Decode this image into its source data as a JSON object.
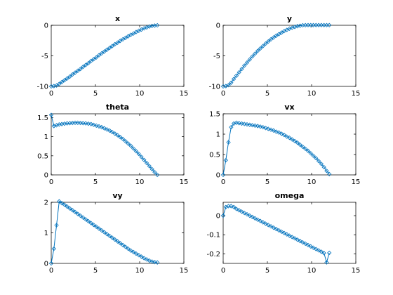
{
  "figure": {
    "background": "#ffffff",
    "series_color": "#0072bd",
    "marker": "diamond-open"
  },
  "chart_data": [
    {
      "type": "line",
      "title": "x",
      "xlim": [
        0,
        15
      ],
      "ylim": [
        -10,
        0
      ],
      "xticks": [
        0,
        5,
        10,
        15
      ],
      "yticks": [
        -10,
        -5,
        0
      ],
      "series": [
        {
          "x": [
            0,
            0.3,
            0.6,
            0.9,
            1.2,
            1.5,
            1.8,
            2.1,
            2.4,
            2.7,
            3.0,
            3.3,
            3.6,
            3.9,
            4.2,
            4.5,
            4.8,
            5.1,
            5.4,
            5.7,
            6.0,
            6.3,
            6.6,
            6.9,
            7.2,
            7.5,
            7.8,
            8.1,
            8.4,
            8.7,
            9.0,
            9.3,
            9.6,
            9.9,
            10.2,
            10.5,
            10.8,
            11.1,
            11.4,
            11.7,
            12.0
          ],
          "y": [
            -10.0,
            -9.95,
            -9.85,
            -9.6,
            -9.3,
            -9.0,
            -8.7,
            -8.4,
            -8.05,
            -7.75,
            -7.45,
            -7.15,
            -6.8,
            -6.5,
            -6.2,
            -5.85,
            -5.55,
            -5.25,
            -4.9,
            -4.6,
            -4.3,
            -4.0,
            -3.7,
            -3.4,
            -3.1,
            -2.85,
            -2.55,
            -2.3,
            -2.05,
            -1.8,
            -1.55,
            -1.35,
            -1.1,
            -0.9,
            -0.7,
            -0.5,
            -0.35,
            -0.2,
            -0.1,
            -0.05,
            0.0
          ]
        }
      ]
    },
    {
      "type": "line",
      "title": "y",
      "xlim": [
        0,
        15
      ],
      "ylim": [
        -10,
        0
      ],
      "xticks": [
        0,
        5,
        10,
        15
      ],
      "yticks": [
        -10,
        -5,
        0
      ],
      "series": [
        {
          "x": [
            0,
            0.3,
            0.6,
            0.9,
            1.2,
            1.5,
            1.8,
            2.1,
            2.4,
            2.7,
            3.0,
            3.3,
            3.6,
            3.9,
            4.2,
            4.5,
            4.8,
            5.1,
            5.4,
            5.7,
            6.0,
            6.3,
            6.6,
            6.9,
            7.2,
            7.5,
            7.8,
            8.1,
            8.4,
            8.7,
            9.0,
            9.3,
            9.6,
            9.9,
            10.2,
            10.5,
            10.8,
            11.1,
            11.4,
            11.7,
            12.0
          ],
          "y": [
            -10.0,
            -9.95,
            -9.8,
            -9.4,
            -8.8,
            -8.25,
            -7.7,
            -7.15,
            -6.6,
            -6.1,
            -5.6,
            -5.1,
            -4.65,
            -4.2,
            -3.8,
            -3.4,
            -3.0,
            -2.65,
            -2.3,
            -2.0,
            -1.7,
            -1.45,
            -1.2,
            -0.95,
            -0.75,
            -0.55,
            -0.4,
            -0.27,
            -0.15,
            -0.07,
            0.0,
            0.02,
            0.03,
            0.03,
            0.03,
            0.03,
            0.03,
            0.03,
            0.03,
            0.03,
            0.03
          ]
        }
      ]
    },
    {
      "type": "line",
      "title": "theta",
      "xlim": [
        0,
        15
      ],
      "ylim": [
        0,
        1.6
      ],
      "xticks": [
        0,
        5,
        10,
        15
      ],
      "yticks": [
        0,
        0.5,
        1,
        1.5
      ],
      "series": [
        {
          "x": [
            0,
            0.3,
            0.6,
            0.9,
            1.2,
            1.5,
            1.8,
            2.1,
            2.4,
            2.7,
            3.0,
            3.3,
            3.6,
            3.9,
            4.2,
            4.5,
            4.8,
            5.1,
            5.4,
            5.7,
            6.0,
            6.3,
            6.6,
            6.9,
            7.2,
            7.5,
            7.8,
            8.1,
            8.4,
            8.7,
            9.0,
            9.3,
            9.6,
            9.9,
            10.2,
            10.5,
            10.8,
            11.1,
            11.4,
            11.7,
            12.0
          ],
          "y": [
            1.57,
            1.28,
            1.3,
            1.32,
            1.33,
            1.34,
            1.35,
            1.355,
            1.36,
            1.365,
            1.365,
            1.36,
            1.355,
            1.35,
            1.34,
            1.33,
            1.31,
            1.29,
            1.27,
            1.25,
            1.22,
            1.19,
            1.16,
            1.12,
            1.08,
            1.04,
            0.99,
            0.94,
            0.88,
            0.82,
            0.76,
            0.69,
            0.62,
            0.55,
            0.47,
            0.39,
            0.31,
            0.23,
            0.15,
            0.07,
            0.0
          ]
        }
      ]
    },
    {
      "type": "line",
      "title": "vx",
      "xlim": [
        0,
        15
      ],
      "ylim": [
        0,
        1.5
      ],
      "xticks": [
        0,
        5,
        10,
        15
      ],
      "yticks": [
        0,
        0.5,
        1,
        1.5
      ],
      "series": [
        {
          "x": [
            0,
            0.3,
            0.6,
            0.9,
            1.2,
            1.5,
            1.8,
            2.1,
            2.4,
            2.7,
            3.0,
            3.3,
            3.6,
            3.9,
            4.2,
            4.5,
            4.8,
            5.1,
            5.4,
            5.7,
            6.0,
            6.3,
            6.6,
            6.9,
            7.2,
            7.5,
            7.8,
            8.1,
            8.4,
            8.7,
            9.0,
            9.3,
            9.6,
            9.9,
            10.2,
            10.5,
            10.8,
            11.1,
            11.4,
            11.7,
            12.0
          ],
          "y": [
            0.0,
            0.36,
            0.8,
            1.17,
            1.26,
            1.28,
            1.27,
            1.26,
            1.25,
            1.24,
            1.23,
            1.22,
            1.21,
            1.2,
            1.185,
            1.17,
            1.15,
            1.13,
            1.11,
            1.09,
            1.06,
            1.04,
            1.01,
            0.98,
            0.94,
            0.91,
            0.87,
            0.83,
            0.79,
            0.74,
            0.69,
            0.64,
            0.59,
            0.53,
            0.47,
            0.41,
            0.34,
            0.27,
            0.19,
            0.1,
            0.02
          ]
        }
      ]
    },
    {
      "type": "line",
      "title": "vy",
      "xlim": [
        0,
        15
      ],
      "ylim": [
        0,
        2
      ],
      "xticks": [
        0,
        5,
        10,
        15
      ],
      "yticks": [
        0,
        1,
        2
      ],
      "series": [
        {
          "x": [
            0,
            0.3,
            0.6,
            0.9,
            1.2,
            1.5,
            1.8,
            2.1,
            2.4,
            2.7,
            3.0,
            3.3,
            3.6,
            3.9,
            4.2,
            4.5,
            4.8,
            5.1,
            5.4,
            5.7,
            6.0,
            6.3,
            6.6,
            6.9,
            7.2,
            7.5,
            7.8,
            8.1,
            8.4,
            8.7,
            9.0,
            9.3,
            9.6,
            9.9,
            10.2,
            10.5,
            10.8,
            11.1,
            11.4,
            11.7,
            12.0
          ],
          "y": [
            0.0,
            0.48,
            1.25,
            2.03,
            1.97,
            1.92,
            1.86,
            1.8,
            1.74,
            1.68,
            1.62,
            1.56,
            1.5,
            1.44,
            1.38,
            1.32,
            1.26,
            1.2,
            1.14,
            1.08,
            1.02,
            0.96,
            0.9,
            0.84,
            0.78,
            0.72,
            0.66,
            0.6,
            0.54,
            0.48,
            0.42,
            0.37,
            0.32,
            0.27,
            0.22,
            0.17,
            0.13,
            0.09,
            0.06,
            0.04,
            0.03
          ]
        }
      ]
    },
    {
      "type": "line",
      "title": "omega",
      "xlim": [
        0,
        15
      ],
      "ylim": [
        -0.25,
        0.07
      ],
      "xticks": [
        0,
        5,
        10,
        15
      ],
      "yticks": [
        -0.2,
        -0.1,
        0
      ],
      "series": [
        {
          "x": [
            0,
            0.3,
            0.6,
            0.9,
            1.2,
            1.5,
            1.8,
            2.1,
            2.4,
            2.7,
            3.0,
            3.3,
            3.6,
            3.9,
            4.2,
            4.5,
            4.8,
            5.1,
            5.4,
            5.7,
            6.0,
            6.3,
            6.6,
            6.9,
            7.2,
            7.5,
            7.8,
            8.1,
            8.4,
            8.7,
            9.0,
            9.3,
            9.6,
            9.9,
            10.2,
            10.5,
            10.8,
            11.1,
            11.4,
            11.7,
            12.0
          ],
          "y": [
            0.0,
            0.045,
            0.05,
            0.05,
            0.045,
            0.035,
            0.028,
            0.021,
            0.014,
            0.007,
            0.0,
            -0.007,
            -0.014,
            -0.021,
            -0.028,
            -0.035,
            -0.042,
            -0.049,
            -0.056,
            -0.063,
            -0.07,
            -0.077,
            -0.084,
            -0.091,
            -0.098,
            -0.105,
            -0.112,
            -0.119,
            -0.126,
            -0.133,
            -0.14,
            -0.147,
            -0.154,
            -0.161,
            -0.168,
            -0.175,
            -0.182,
            -0.189,
            -0.196,
            -0.245,
            -0.195
          ]
        }
      ]
    }
  ]
}
